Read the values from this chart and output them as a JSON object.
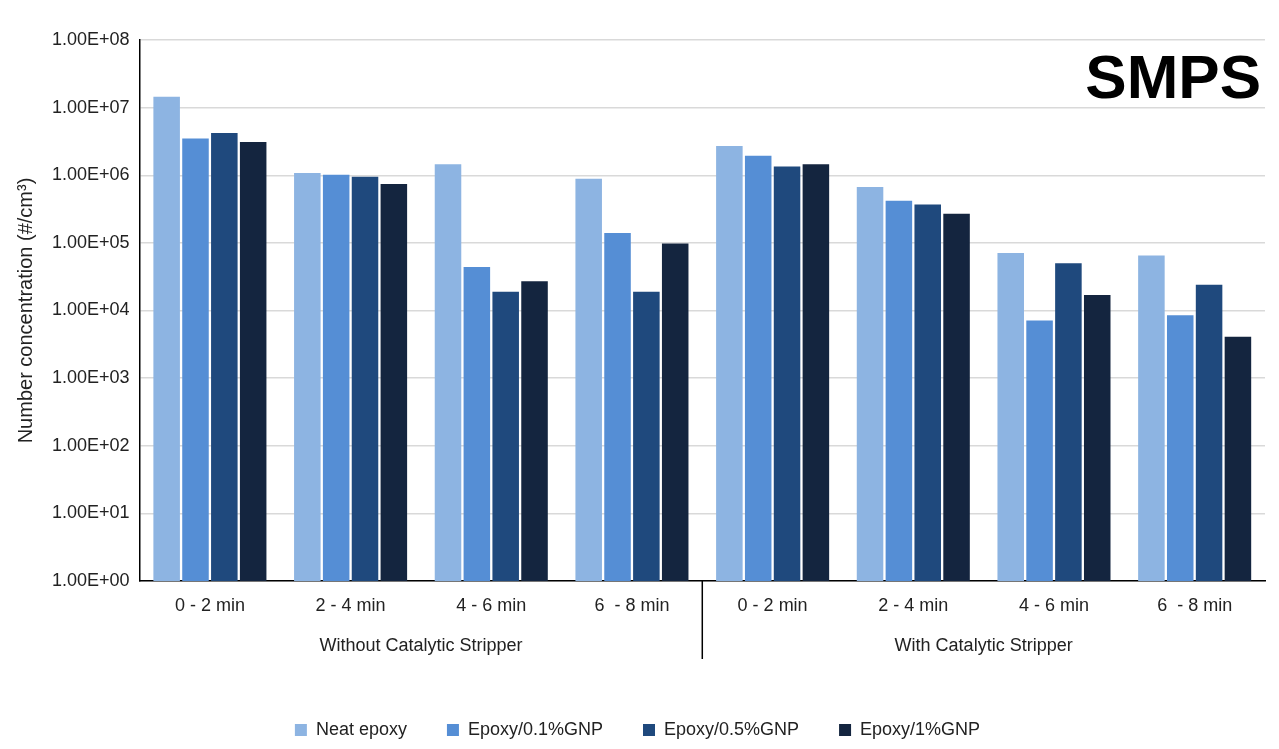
{
  "chart_data": {
    "type": "bar",
    "title": "SMPS",
    "ylabel": "Number concentration (#/cm³)",
    "categories": [
      "0 - 2 min",
      "2 - 4 min",
      "4 - 6 min",
      "6  - 8 min",
      "0 - 2 min",
      "2 - 4 min",
      "4 - 6 min",
      "6  - 8 min"
    ],
    "annotations": [
      "Without Catalytic Stripper",
      "With Catalytic Stripper"
    ],
    "series": [
      {
        "name": "Neat epoxy",
        "color": "#8db4e2",
        "values": [
          14500000,
          1080000,
          1450000,
          890000,
          2700000,
          670000,
          71000,
          65000
        ]
      },
      {
        "name": "Epoxy/0.1%GNP",
        "color": "#558ed5",
        "values": [
          3500000,
          1020000,
          44000,
          140000,
          1950000,
          420000,
          7100,
          8500
        ]
      },
      {
        "name": "Epoxy/0.5%GNP",
        "color": "#1f497d",
        "values": [
          4200000,
          950000,
          19000,
          19000,
          1350000,
          370000,
          50000,
          24000
        ]
      },
      {
        "name": "Epoxy/1%GNP",
        "color": "#14253f",
        "values": [
          3100000,
          740000,
          27000,
          98000,
          1450000,
          270000,
          17000,
          4100
        ]
      }
    ],
    "log": true,
    "ylim": [
      1,
      100000000
    ],
    "yticks": [
      {
        "value": 1,
        "label": "1.00E+00"
      },
      {
        "value": 10,
        "label": "1.00E+01"
      },
      {
        "value": 100,
        "label": "1.00E+02"
      },
      {
        "value": 1000,
        "label": "1.00E+03"
      },
      {
        "value": 10000,
        "label": "1.00E+04"
      },
      {
        "value": 100000,
        "label": "1.00E+05"
      },
      {
        "value": 1000000,
        "label": "1.00E+06"
      },
      {
        "value": 10000000,
        "label": "1.00E+07"
      },
      {
        "value": 100000000,
        "label": "1.00E+08"
      }
    ],
    "grid": "y",
    "legend": "bottom"
  }
}
